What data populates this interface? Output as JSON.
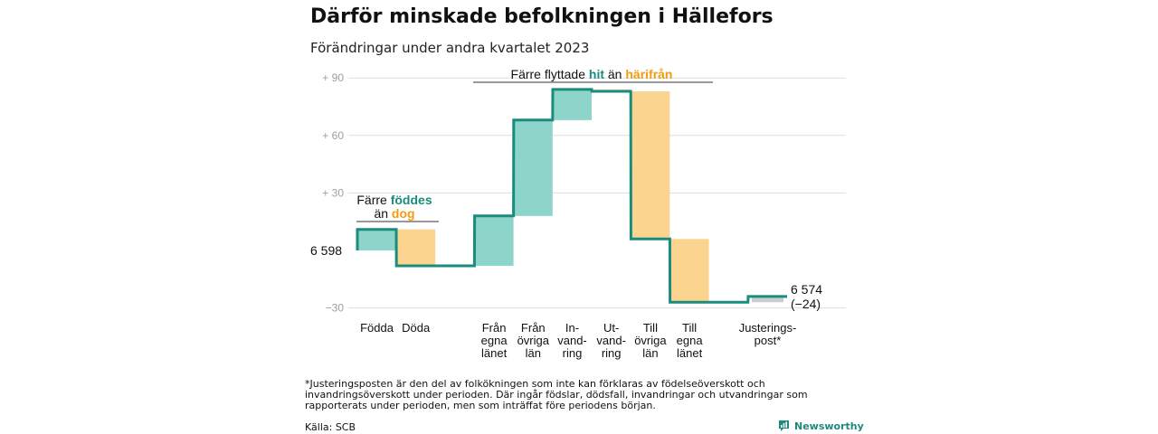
{
  "title": "Därför minskade befolkningen i Hällefors",
  "subtitle": "Förändringar under andra kvartalet 2023",
  "footnote": "*Justeringsposten är den del av folkökningen som inte kan förklaras av födelseöverskott och invandringsöverskott under perioden. Där ingår födslar, dödsfall, invandringar och utvandringar som rapporterats under perioden, men som inträffat före periodens början.",
  "source": "Källa: SCB",
  "brand": "Newsworthy",
  "colors": {
    "teal": "#1a8c7e",
    "teal_fill": "#8dd4cb",
    "orange": "#f39c12",
    "orange_fill": "#fbd58f",
    "grey_fill": "#cccccc",
    "grid": "#dddddd",
    "tick": "#9e9e9e"
  },
  "chart_data": {
    "type": "waterfall",
    "start_label": "6 598",
    "end_label": "6 574",
    "end_change_label": "(−24)",
    "start_value": 6598,
    "end_value": 6574,
    "y_axis": {
      "ticks": [
        "+ 90",
        "+ 60",
        "+ 30",
        "−30"
      ],
      "tick_values": [
        90,
        60,
        30,
        -30
      ],
      "range": [
        -30,
        90
      ],
      "unit": "change from 6 598"
    },
    "categories": [
      {
        "label": [
          "Födda"
        ],
        "change": 11,
        "kind": "in"
      },
      {
        "label": [
          "Döda"
        ],
        "change": -19,
        "kind": "out"
      },
      {
        "label": [],
        "change": 0,
        "kind": "gap"
      },
      {
        "label": [
          "Från",
          "egna",
          "länet"
        ],
        "change": 26,
        "kind": "in"
      },
      {
        "label": [
          "Från",
          "övriga",
          "län"
        ],
        "change": 50,
        "kind": "in"
      },
      {
        "label": [
          "In-",
          "vand-",
          "ring"
        ],
        "change": 16,
        "kind": "in"
      },
      {
        "label": [
          "Ut-",
          "vand-",
          "ring"
        ],
        "change": -1,
        "kind": "out"
      },
      {
        "label": [
          "Till",
          "övriga",
          "län"
        ],
        "change": -77,
        "kind": "out"
      },
      {
        "label": [
          "Till",
          "egna",
          "länet"
        ],
        "change": -33,
        "kind": "out"
      },
      {
        "label": [],
        "change": 0,
        "kind": "gap"
      },
      {
        "label": [
          "Justerings-",
          "post*"
        ],
        "change": 3,
        "kind": "adjust"
      }
    ],
    "annotations": {
      "births": {
        "line1": "Färre",
        "line1_hl": "föddes",
        "line2": "än",
        "line2_hl": "dog"
      },
      "migration": {
        "text": "Färre flyttade",
        "hl1": "hit",
        "mid": "än",
        "hl2": "härifrån"
      }
    }
  }
}
